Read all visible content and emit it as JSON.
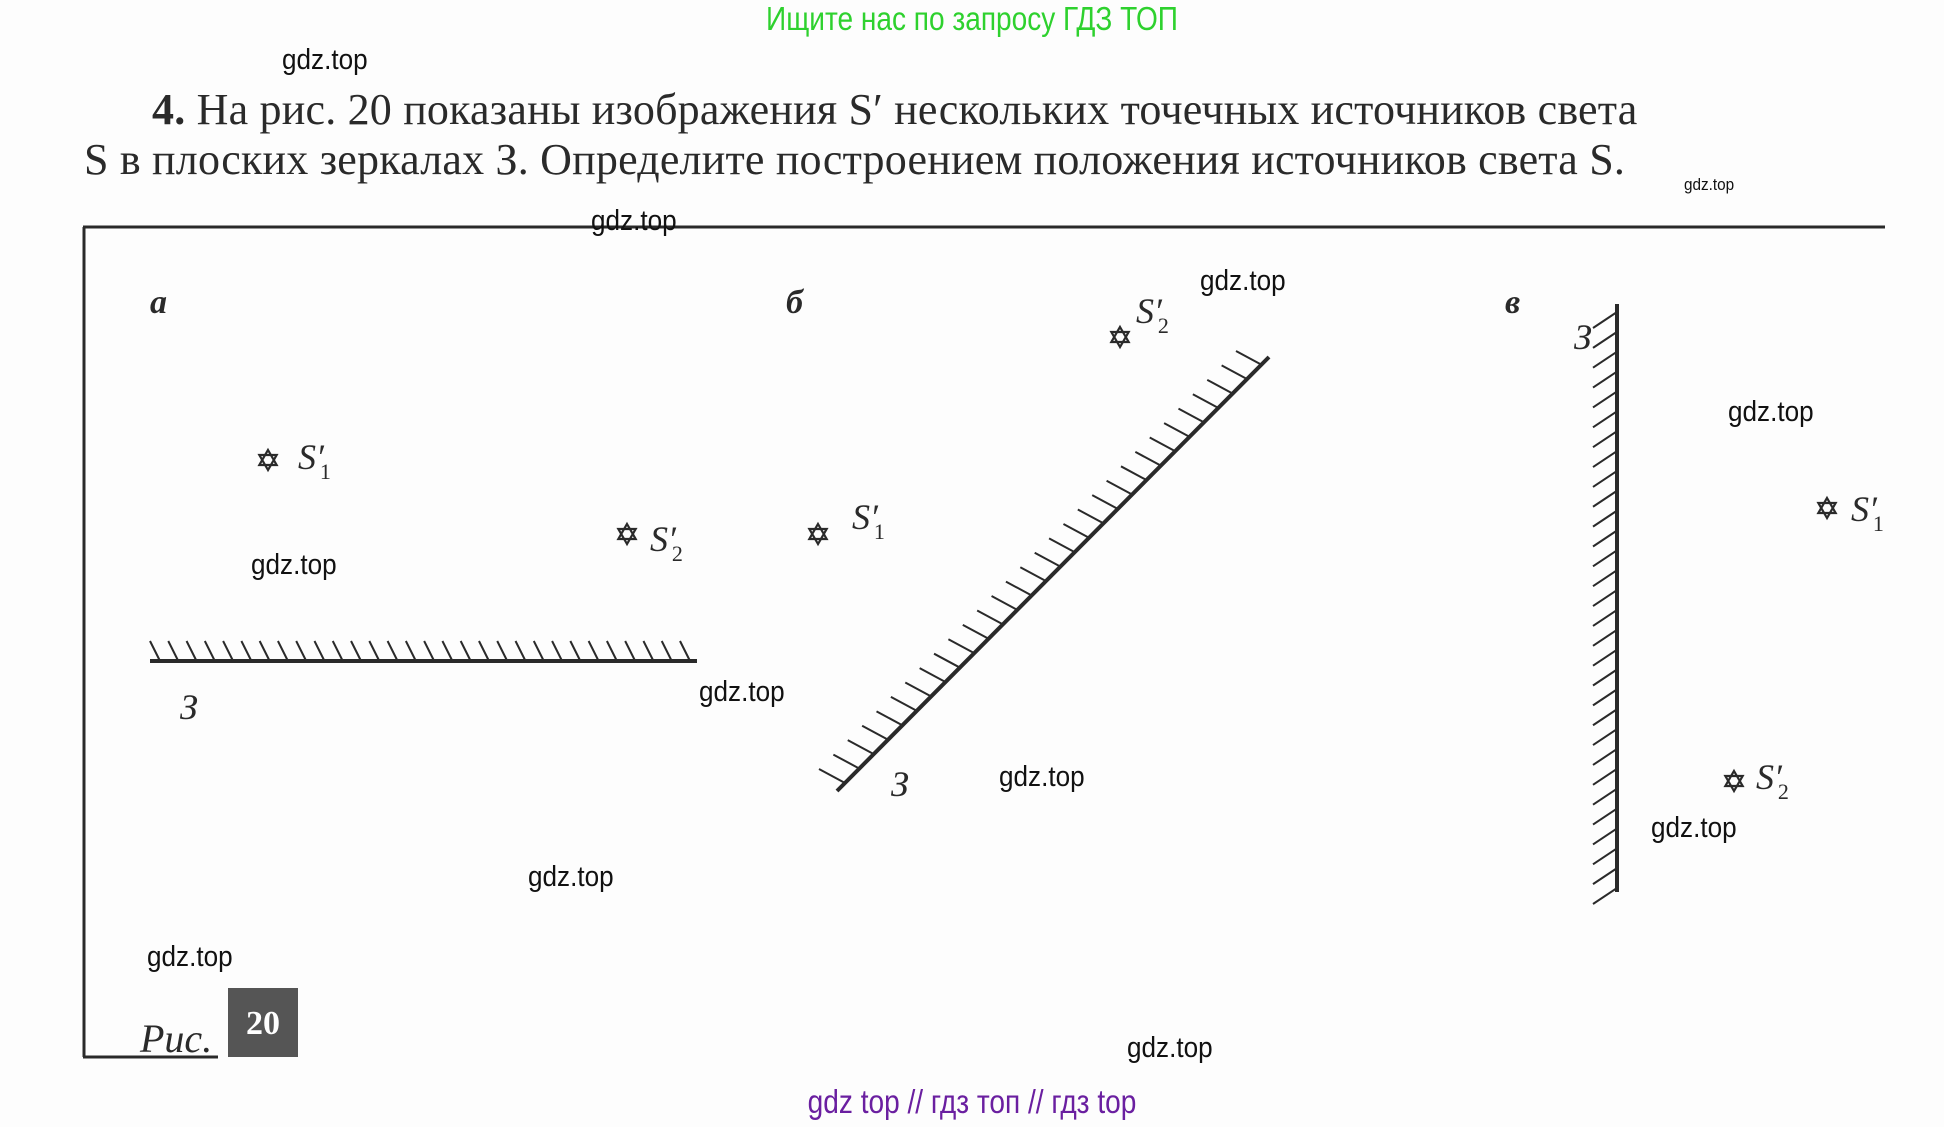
{
  "header": {
    "search_hint": "Ищите нас по запросу ГДЗ ТОП"
  },
  "task": {
    "number": "4.",
    "line1": "На рис. 20 показаны изображения S′ нескольких точечных источников света",
    "line2": "S в плоских зеркалах З. Определите построением положения источников света S."
  },
  "figure": {
    "caption": "Рис.",
    "number": "20",
    "mirror_label": "З",
    "panels": [
      {
        "label": "а",
        "images": [
          {
            "name": "S′",
            "index": "1"
          },
          {
            "name": "S′",
            "index": "2"
          }
        ]
      },
      {
        "label": "б",
        "images": [
          {
            "name": "S′",
            "index": "1"
          },
          {
            "name": "S′",
            "index": "2"
          }
        ]
      },
      {
        "label": "в",
        "images": [
          {
            "name": "S′",
            "index": "1"
          },
          {
            "name": "S′",
            "index": "2"
          }
        ]
      }
    ]
  },
  "watermark": "gdz.top",
  "footer": {
    "text": "gdz top  //  гдз топ  //  гдз top"
  },
  "colors": {
    "header": "#2ed12e",
    "footer": "#6a1fa0",
    "ink": "#2a2a2a"
  }
}
